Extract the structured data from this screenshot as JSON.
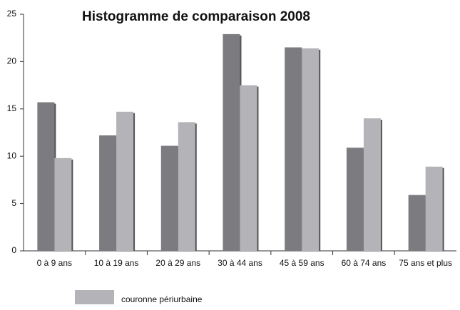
{
  "chart_data": {
    "type": "bar",
    "title": "Histogramme de comparaison 2008",
    "categories": [
      "0 à 9 ans",
      "10 à 19 ans",
      "20 à 29 ans",
      "30 à 44 ans",
      "45 à 59 ans",
      "60 à 74 ans",
      "75 ans et plus"
    ],
    "series": [
      {
        "color": "#7b7b80",
        "values": [
          15.7,
          12.2,
          11.1,
          22.9,
          21.5,
          10.9,
          5.9
        ]
      },
      {
        "name": "couronne périurbaine",
        "color": "#b3b3b8",
        "values": [
          9.8,
          14.7,
          13.6,
          17.5,
          21.4,
          14.0,
          8.9
        ]
      }
    ],
    "ylim": [
      0,
      25
    ],
    "yticks": [
      0,
      5,
      10,
      15,
      20,
      25
    ],
    "grid": false
  }
}
